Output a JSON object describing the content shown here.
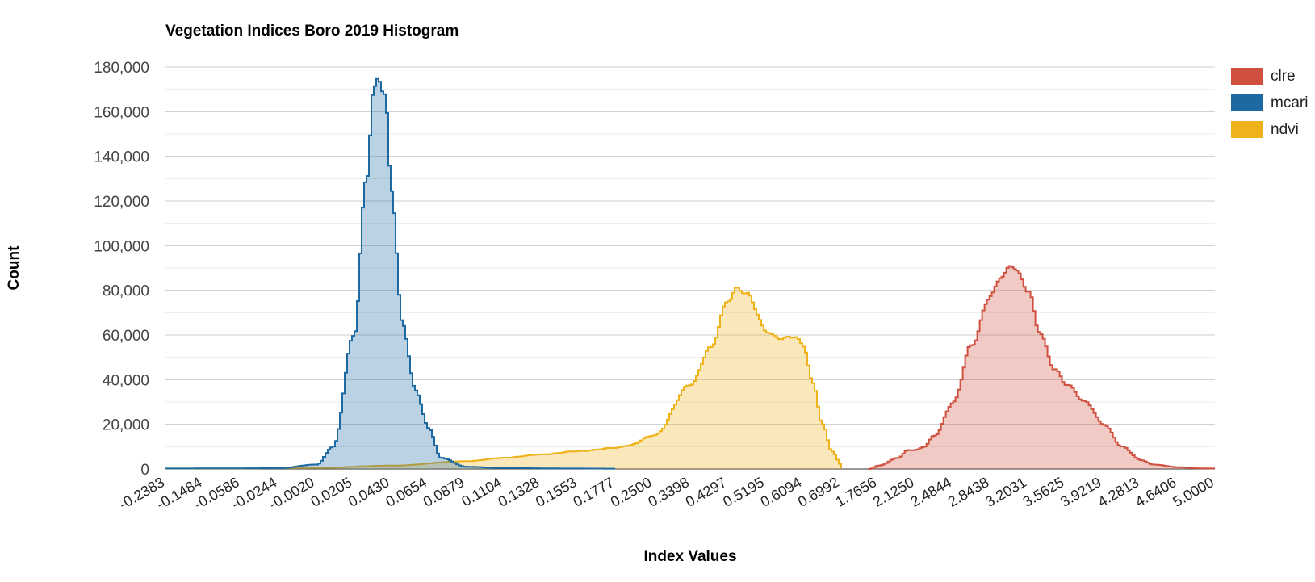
{
  "chart_data": {
    "type": "area",
    "title": "Vegetation Indices Boro 2019 Histogram",
    "xlabel": "Index Values",
    "ylabel": "Count",
    "ylim": [
      0,
      180000
    ],
    "y_ticks": [
      "0",
      "20,000",
      "40,000",
      "60,000",
      "80,000",
      "100,000",
      "120,000",
      "140,000",
      "160,000",
      "180,000"
    ],
    "x_tick_labels": [
      "-0.2383",
      "-0.1484",
      "-0.0586",
      "-0.0244",
      "-0.0020",
      "0.0205",
      "0.0430",
      "0.0654",
      "0.0879",
      "0.1104",
      "0.1328",
      "0.1553",
      "0.1777",
      "0.2500",
      "0.3398",
      "0.4297",
      "0.5195",
      "0.6094",
      "0.6992",
      "1.7656",
      "2.1250",
      "2.4844",
      "2.8438",
      "3.2031",
      "3.5625",
      "3.9219",
      "4.2813",
      "4.6406",
      "5.0000"
    ],
    "grid": true,
    "legend_position": "right",
    "series": [
      {
        "name": "clre",
        "color": "#d0503f",
        "points": [
          [
            1.5,
            0
          ],
          [
            1.7656,
            1500
          ],
          [
            1.95,
            5000
          ],
          [
            2.05,
            8500
          ],
          [
            2.125,
            8500
          ],
          [
            2.2,
            10000
          ],
          [
            2.3,
            15000
          ],
          [
            2.4844,
            30000
          ],
          [
            2.65,
            55000
          ],
          [
            2.8438,
            78000
          ],
          [
            2.95,
            87000
          ],
          [
            3.05,
            91000
          ],
          [
            3.2031,
            80000
          ],
          [
            3.3,
            62000
          ],
          [
            3.45,
            45000
          ],
          [
            3.5625,
            38000
          ],
          [
            3.75,
            30000
          ],
          [
            3.9219,
            20000
          ],
          [
            4.1,
            10000
          ],
          [
            4.2813,
            4000
          ],
          [
            4.4,
            2000
          ],
          [
            4.6406,
            800
          ],
          [
            4.85,
            300
          ],
          [
            5.0,
            200
          ]
        ]
      },
      {
        "name": "mcari",
        "color": "#1c6aa1",
        "points": [
          [
            -0.2383,
            200
          ],
          [
            -0.0586,
            300
          ],
          [
            -0.0244,
            400
          ],
          [
            -0.002,
            2000
          ],
          [
            0.008,
            10000
          ],
          [
            0.0205,
            60000
          ],
          [
            0.028,
            130000
          ],
          [
            0.032,
            168000
          ],
          [
            0.0355,
            175000
          ],
          [
            0.039,
            168000
          ],
          [
            0.043,
            125000
          ],
          [
            0.0495,
            65000
          ],
          [
            0.0575,
            35000
          ],
          [
            0.0654,
            18000
          ],
          [
            0.0725,
            5000
          ],
          [
            0.0879,
            1000
          ],
          [
            0.1104,
            400
          ],
          [
            0.1553,
            200
          ],
          [
            0.1777,
            150
          ]
        ]
      },
      {
        "name": "ndvi",
        "color": "#efb21b",
        "points": [
          [
            -0.2383,
            200
          ],
          [
            -0.0586,
            300
          ],
          [
            -0.002,
            500
          ],
          [
            0.043,
            1500
          ],
          [
            0.0879,
            3500
          ],
          [
            0.1104,
            5000
          ],
          [
            0.1328,
            6500
          ],
          [
            0.1553,
            8000
          ],
          [
            0.1777,
            9500
          ],
          [
            0.2,
            10500
          ],
          [
            0.25,
            15000
          ],
          [
            0.3398,
            38000
          ],
          [
            0.3848,
            54000
          ],
          [
            0.4297,
            76000
          ],
          [
            0.4522,
            81000
          ],
          [
            0.4746,
            78000
          ],
          [
            0.5195,
            62000
          ],
          [
            0.542,
            59000
          ],
          [
            0.5644,
            58500
          ],
          [
            0.5869,
            59500
          ],
          [
            0.6094,
            55000
          ],
          [
            0.6318,
            38000
          ],
          [
            0.6543,
            20000
          ],
          [
            0.6767,
            8000
          ],
          [
            0.6992,
            2000
          ],
          [
            0.7216,
            800
          ],
          [
            0.7441,
            300
          ]
        ]
      }
    ]
  }
}
